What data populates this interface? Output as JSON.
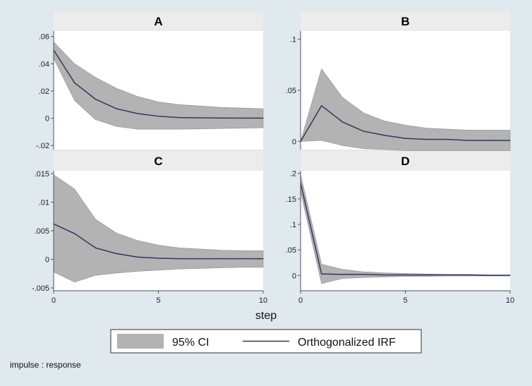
{
  "chart_data": {
    "type": "area",
    "xlabel": "step",
    "note": "impulse : response",
    "legend": {
      "position": "bottom",
      "entries": [
        {
          "label": "95% CI",
          "kind": "band"
        },
        {
          "label": "Orthogonalized IRF",
          "kind": "line"
        }
      ]
    },
    "colors": {
      "background": "#dfe9ee",
      "plot_bg": "#ffffff",
      "header_bg": "#ececec",
      "band": "#b3b3b3",
      "band_edge": "#8e8e8e",
      "line": "#2b3a5a",
      "axis": "#555555"
    },
    "x_ticks": [
      0,
      5,
      10
    ],
    "panels": [
      {
        "title": "A",
        "xlim": [
          0,
          10
        ],
        "ylim": [
          -0.023,
          0.064
        ],
        "y_ticks": [
          -0.02,
          0,
          0.02,
          0.04,
          0.06
        ],
        "y_tick_labels": [
          "-.02",
          "0",
          ".02",
          ".04",
          ".06"
        ],
        "x": [
          0,
          1,
          2,
          3,
          4,
          5,
          6,
          7,
          8,
          9,
          10
        ],
        "irf": [
          0.05,
          0.026,
          0.014,
          0.007,
          0.0035,
          0.0015,
          0.0005,
          0.0003,
          0.0002,
          0.0001,
          0.0001
        ],
        "upper": [
          0.056,
          0.04,
          0.03,
          0.022,
          0.016,
          0.012,
          0.01,
          0.009,
          0.008,
          0.0075,
          0.007
        ],
        "lower": [
          0.044,
          0.013,
          -0.001,
          -0.006,
          -0.008,
          -0.008,
          -0.008,
          -0.0078,
          -0.0075,
          -0.0073,
          -0.007
        ]
      },
      {
        "title": "B",
        "xlim": [
          0,
          10
        ],
        "ylim": [
          -0.008,
          0.108
        ],
        "y_ticks": [
          0,
          0.05,
          0.1
        ],
        "y_tick_labels": [
          "0",
          ".05",
          ".1"
        ],
        "x": [
          0,
          1,
          2,
          3,
          4,
          5,
          6,
          7,
          8,
          9,
          10
        ],
        "irf": [
          0,
          0.035,
          0.019,
          0.01,
          0.006,
          0.003,
          0.002,
          0.002,
          0.001,
          0.001,
          0.001
        ],
        "upper": [
          0,
          0.071,
          0.043,
          0.028,
          0.02,
          0.016,
          0.013,
          0.012,
          0.011,
          0.011,
          0.011
        ],
        "lower": [
          0,
          0.001,
          -0.004,
          -0.007,
          -0.008,
          -0.009,
          -0.009,
          -0.009,
          -0.009,
          -0.009,
          -0.009
        ]
      },
      {
        "title": "C",
        "xlim": [
          0,
          10
        ],
        "ylim": [
          -0.0055,
          0.0155
        ],
        "y_ticks": [
          -0.005,
          0,
          0.005,
          0.01,
          0.015
        ],
        "y_tick_labels": [
          "-.005",
          "0",
          ".005",
          ".01",
          ".015"
        ],
        "x": [
          0,
          1,
          2,
          3,
          4,
          5,
          6,
          7,
          8,
          9,
          10
        ],
        "irf": [
          0.0062,
          0.0045,
          0.002,
          0.001,
          0.0004,
          0.0002,
          0.0001,
          0.0001,
          0.0001,
          0.0001,
          0.0001
        ],
        "upper": [
          0.0148,
          0.0123,
          0.007,
          0.0046,
          0.0033,
          0.0025,
          0.002,
          0.0018,
          0.0016,
          0.0015,
          0.0015
        ],
        "lower": [
          -0.0022,
          -0.004,
          -0.0028,
          -0.0024,
          -0.0021,
          -0.0019,
          -0.0017,
          -0.0016,
          -0.0015,
          -0.0014,
          -0.0014
        ]
      },
      {
        "title": "D",
        "xlim": [
          0,
          10
        ],
        "ylim": [
          -0.03,
          0.205
        ],
        "y_ticks": [
          0,
          0.05,
          0.1,
          0.15,
          0.2
        ],
        "y_tick_labels": [
          "0",
          ".05",
          ".1",
          ".15",
          ".2"
        ],
        "x": [
          0,
          1,
          2,
          3,
          4,
          5,
          6,
          7,
          8,
          9,
          10
        ],
        "irf": [
          0.181,
          0.003,
          0.002,
          0.002,
          0.001,
          0.001,
          0.001,
          0.001,
          0.001,
          0.0,
          0.0
        ],
        "upper": [
          0.198,
          0.022,
          0.012,
          0.007,
          0.005,
          0.004,
          0.003,
          0.002,
          0.002,
          0.001,
          0.001
        ],
        "lower": [
          0.164,
          -0.016,
          -0.006,
          -0.004,
          -0.003,
          -0.002,
          -0.002,
          -0.001,
          -0.001,
          -0.001,
          -0.001
        ]
      }
    ]
  }
}
